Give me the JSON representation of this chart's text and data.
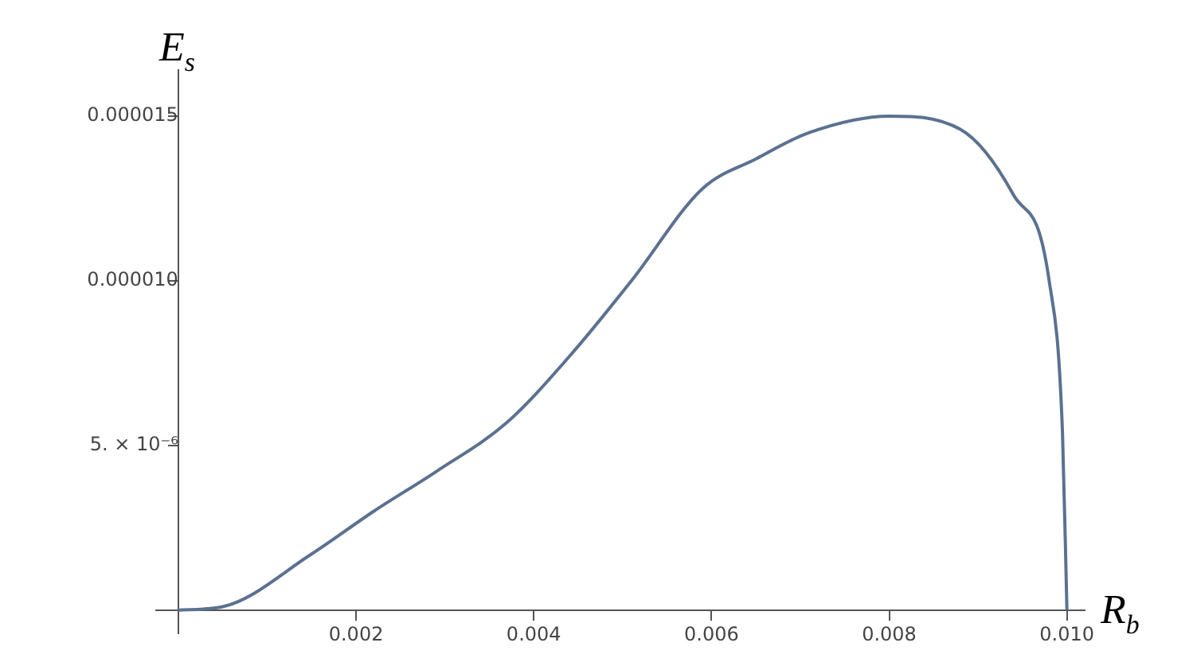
{
  "chart_data": {
    "type": "line",
    "xlabel": "R$_{b}$",
    "ylabel": "E$_{s}$",
    "x": [
      0,
      0.0005,
      0.0015,
      0.0022,
      0.0029,
      0.0037,
      0.0044,
      0.0051,
      0.0059,
      0.0065,
      0.0071,
      0.008,
      0.0088,
      0.0094,
      0.0098,
      0.00995,
      0.01
    ],
    "series": [
      {
        "color": "#5b7191",
        "values": [
          0,
          1e-07,
          1.7e-06,
          3e-06,
          4.2e-06,
          5.7e-06,
          7.7e-06,
          1e-05,
          1.28e-05,
          1.37e-05,
          1.45e-05,
          1.5e-05,
          1.46e-05,
          1.26e-05,
          1e-05,
          5.4e-06,
          0
        ]
      }
    ],
    "xlim": [
      -0.00025,
      0.0102
    ],
    "ylim": [
      -7e-07,
      1.64e-05
    ],
    "xticks": [
      0.002,
      0.004,
      0.006,
      0.008,
      {
        "value": 0.01,
        "label": "0.010"
      }
    ],
    "yticks": [
      {
        "value": 5e-06,
        "label": "5. × 10⁻⁶"
      },
      {
        "value": 1e-05,
        "label": "0.000010"
      },
      {
        "value": 1.5e-05,
        "label": "0.000015"
      }
    ],
    "marker": "none"
  }
}
